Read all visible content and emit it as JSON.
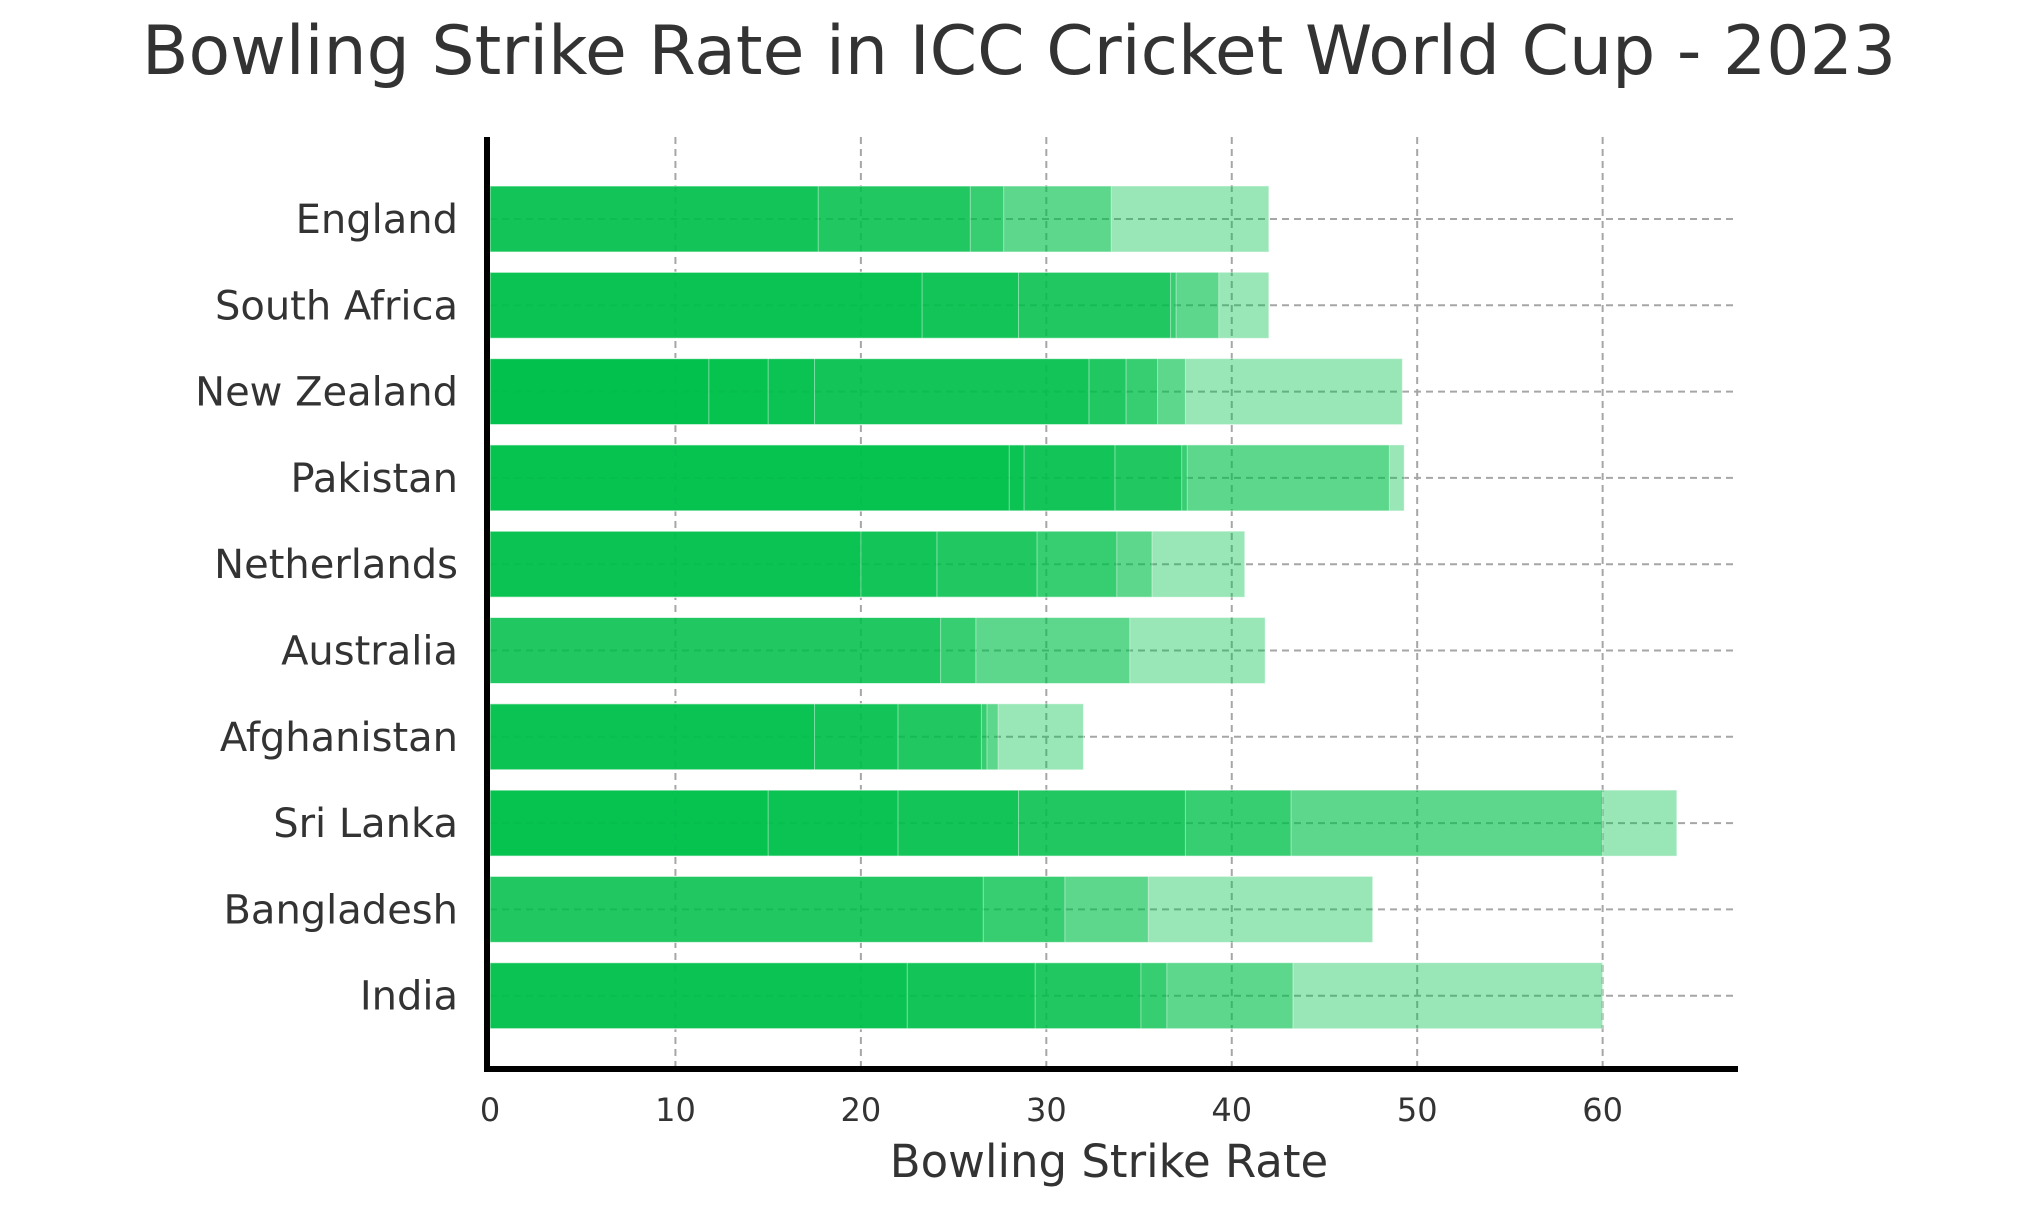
{
  "chart_data": {
    "type": "bar",
    "orientation": "horizontal",
    "stacked": "overlaid",
    "title": "Bowling Strike Rate in ICC Cricket World Cup - 2023",
    "xlabel": "Bowling Strike Rate",
    "ylabel": "",
    "xlim": [
      0,
      67.3
    ],
    "xticks": [
      0,
      10,
      20,
      30,
      40,
      50,
      60
    ],
    "grid": "dashed-gray",
    "bar_color": "#00c04b",
    "categories": [
      "England",
      "South Africa",
      "New Zealand",
      "Pakistan",
      "Netherlands",
      "Australia",
      "Afghanistan",
      "Sri Lanka",
      "Bangladesh",
      "India"
    ],
    "values": [
      [
        17.7,
        25.9,
        27.7,
        33.5,
        42.0
      ],
      [
        23.3,
        28.5,
        36.7,
        37.0,
        39.3,
        42.0
      ],
      [
        11.8,
        15.0,
        17.5,
        32.3,
        34.3,
        36.0,
        37.5,
        49.2
      ],
      [
        28.0,
        28.8,
        33.7,
        37.3,
        37.6,
        48.5,
        49.3
      ],
      [
        20.0,
        24.1,
        29.5,
        33.8,
        35.7,
        40.7
      ],
      [
        24.3,
        26.2,
        34.5,
        41.8
      ],
      [
        17.5,
        22.0,
        26.5,
        26.8,
        27.4,
        32.0
      ],
      [
        15.0,
        22.0,
        28.5,
        37.5,
        43.2,
        60.0,
        64.0
      ],
      [
        26.6,
        31.0,
        35.5,
        47.6
      ],
      [
        22.5,
        29.4,
        35.1,
        36.5,
        43.3,
        60.0
      ]
    ]
  }
}
